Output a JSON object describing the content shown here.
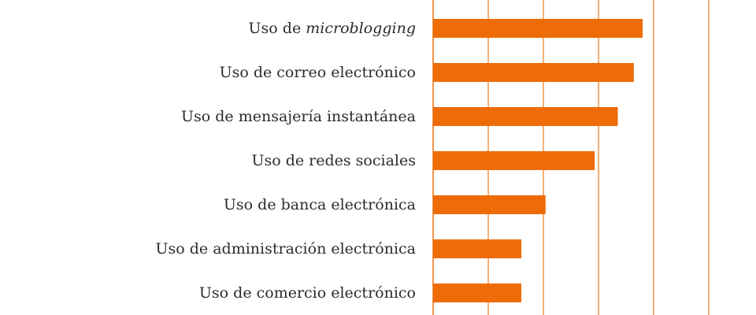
{
  "chart_data": {
    "type": "bar",
    "orientation": "horizontal",
    "categories": [
      "Uso de microblogging",
      "Uso de correo electrónico",
      "Uso de mensajería instantánea",
      "Uso de redes sociales",
      "Uso de banca electrónica",
      "Uso de administración electrónica",
      "Uso de comercio electrónico"
    ],
    "category_parts": [
      [
        {
          "text": "Uso de "
        },
        {
          "text": "microblogging",
          "italic": true
        }
      ],
      [
        {
          "text": "Uso de correo electrónico"
        }
      ],
      [
        {
          "text": "Uso de mensajería instantánea"
        }
      ],
      [
        {
          "text": "Uso de redes sociales"
        }
      ],
      [
        {
          "text": "Uso de banca electrónica"
        }
      ],
      [
        {
          "text": "Uso de administración electrónica"
        }
      ],
      [
        {
          "text": "Uso de comercio electrónico"
        }
      ]
    ],
    "values": [
      38,
      36.4,
      33.5,
      29.3,
      20.4,
      16,
      16
    ],
    "xlim": [
      0,
      50
    ],
    "gridlines_at": [
      0,
      10,
      20,
      30,
      40,
      50
    ],
    "grid": true,
    "bar_color": "#ee6c08",
    "grid_color": "#ef7a1a",
    "title": "",
    "xlabel": "",
    "ylabel": ""
  }
}
